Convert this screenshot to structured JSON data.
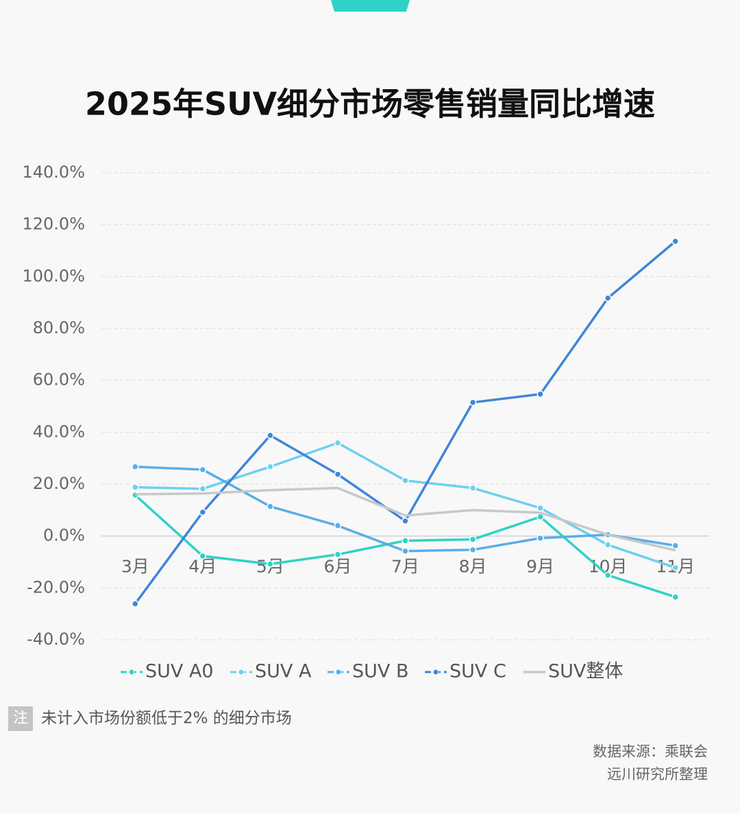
{
  "chart_data": {
    "type": "line",
    "title": "2025年SUV细分市场零售销量同比增速",
    "categories": [
      "3月",
      "4月",
      "5月",
      "6月",
      "7月",
      "8月",
      "9月",
      "10月",
      "11月"
    ],
    "series": [
      {
        "name": "SUV A0",
        "color": "#2fd3c6",
        "markers": true,
        "values": [
          15.8,
          -7.7,
          -10.8,
          -7.1,
          -1.8,
          -1.3,
          7.4,
          -15.1,
          -23.5
        ]
      },
      {
        "name": "SUV A",
        "color": "#6dd0f0",
        "markers": true,
        "values": [
          18.8,
          18.2,
          26.7,
          35.9,
          21.4,
          18.5,
          10.8,
          -3.4,
          -12.2
        ]
      },
      {
        "name": "SUV B",
        "color": "#5aaee8",
        "markers": true,
        "values": [
          26.7,
          25.6,
          11.4,
          4.0,
          -5.8,
          -5.3,
          -0.8,
          0.5,
          -3.7
        ]
      },
      {
        "name": "SUV C",
        "color": "#3f86d8",
        "markers": true,
        "values": [
          -26.1,
          9.2,
          38.8,
          23.8,
          5.8,
          51.5,
          54.7,
          91.7,
          113.6
        ]
      },
      {
        "name": "SUV整体",
        "color": "#c5c9c9",
        "markers": false,
        "values": [
          16.1,
          16.4,
          17.7,
          18.5,
          7.9,
          10.0,
          9.0,
          0.5,
          -5.5
        ]
      }
    ],
    "ylim": [
      -40,
      140
    ],
    "yticks": [
      {
        "value": -40,
        "label": "-40.0%"
      },
      {
        "value": -20,
        "label": "-20.0%"
      },
      {
        "value": 0,
        "label": "0.0%"
      },
      {
        "value": 20,
        "label": "20.0%"
      },
      {
        "value": 40,
        "label": "40.0%"
      },
      {
        "value": 60,
        "label": "60.0%"
      },
      {
        "value": 80,
        "label": "80.0%"
      },
      {
        "value": 100,
        "label": "100.0%"
      },
      {
        "value": 120,
        "label": "120.0%"
      },
      {
        "value": 140,
        "label": "140.0%"
      }
    ],
    "grid": true
  },
  "footer": {
    "note_tag": "注",
    "note": "未计入市场份额低于2% 的细分市场",
    "source": [
      "数据来源：乘联会",
      "远川研究所整理"
    ]
  }
}
